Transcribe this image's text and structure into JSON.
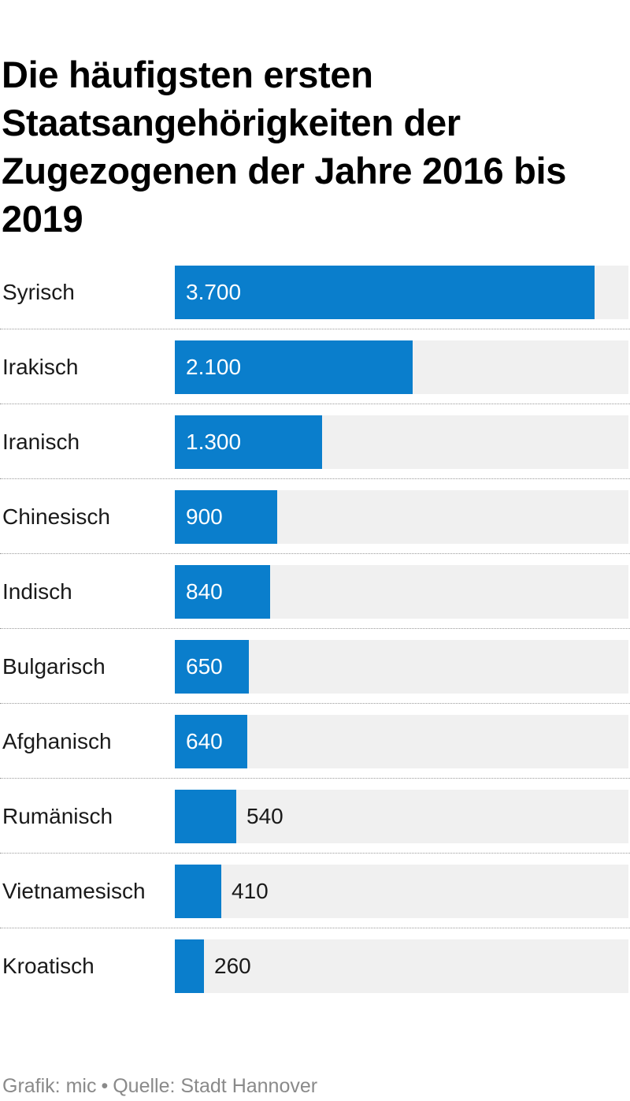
{
  "title": "Die häufigsten ersten Staatsangehörigkeiten der Zugezogenen der Jahre 2016 bis 2019",
  "colors": {
    "bar": "#0a7ecc",
    "track": "#f0f0f0",
    "value_inside": "#ffffff",
    "value_outside": "#1a1a1a"
  },
  "chart_data": {
    "type": "bar",
    "orientation": "horizontal",
    "title": "Die häufigsten ersten Staatsangehörigkeiten der Zugezogenen der Jahre 2016 bis 2019",
    "categories": [
      "Syrisch",
      "Irakisch",
      "Iranisch",
      "Chinesisch",
      "Indisch",
      "Bulgarisch",
      "Afghanisch",
      "Rumänisch",
      "Vietnamesisch",
      "Kroatisch"
    ],
    "values": [
      3700,
      2100,
      1300,
      900,
      840,
      650,
      640,
      540,
      410,
      260
    ],
    "value_labels": [
      "3.700",
      "2.100",
      "1.300",
      "900",
      "840",
      "650",
      "640",
      "540",
      "410",
      "260"
    ],
    "xlim": [
      0,
      4000
    ],
    "grid": false,
    "legend": "none"
  },
  "footer": {
    "credit": "Grafik: mic",
    "separator": "•",
    "source": "Quelle: Stadt Hannover"
  }
}
